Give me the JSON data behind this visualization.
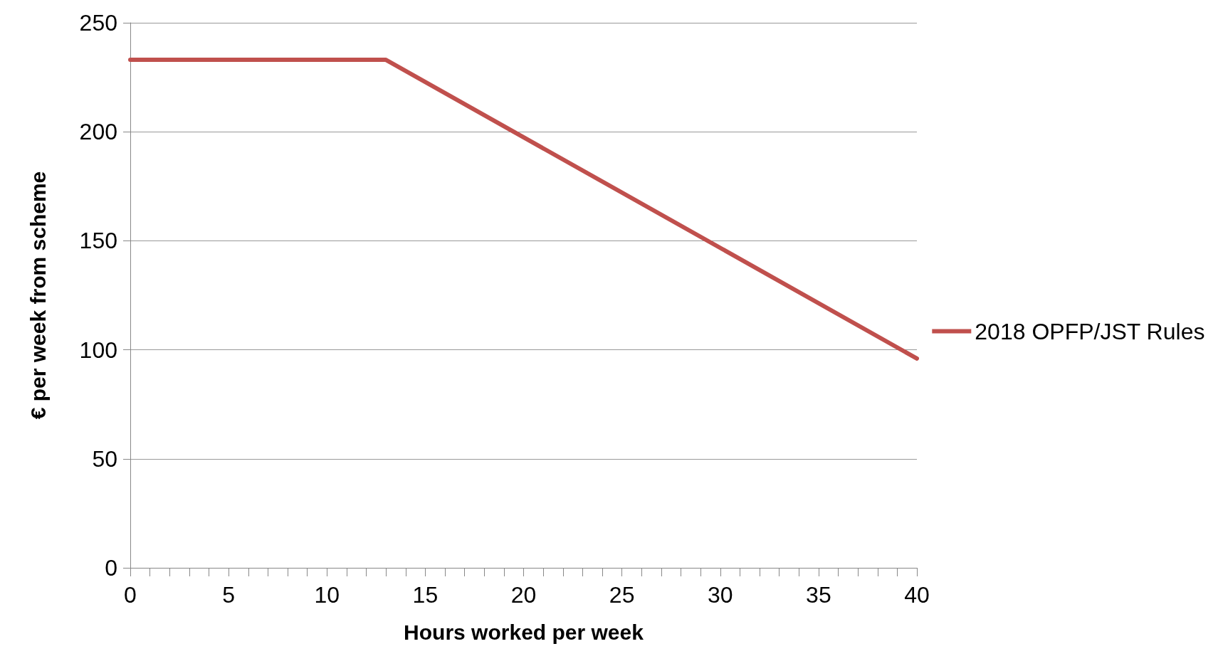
{
  "chart_data": {
    "type": "line",
    "xlabel": "Hours worked per week",
    "ylabel": "€ per week from scheme",
    "series": [
      {
        "name": "2018 OPFP/JST Rules",
        "color": "#c0504d",
        "x": [
          0,
          13,
          40
        ],
        "values": [
          233,
          233,
          96
        ]
      }
    ],
    "xlim": [
      0,
      40
    ],
    "xticks": [
      0,
      {
        "value": 1,
        "label": null
      },
      {
        "value": 2,
        "label": null
      },
      {
        "value": 3,
        "label": null
      },
      {
        "value": 4,
        "label": null
      },
      5,
      {
        "value": 6,
        "label": null
      },
      {
        "value": 7,
        "label": null
      },
      {
        "value": 8,
        "label": null
      },
      {
        "value": 9,
        "label": null
      },
      10,
      {
        "value": 11,
        "label": null
      },
      {
        "value": 12,
        "label": null
      },
      {
        "value": 13,
        "label": null
      },
      {
        "value": 14,
        "label": null
      },
      15,
      {
        "value": 16,
        "label": null
      },
      {
        "value": 17,
        "label": null
      },
      {
        "value": 18,
        "label": null
      },
      {
        "value": 19,
        "label": null
      },
      20,
      {
        "value": 21,
        "label": null
      },
      {
        "value": 22,
        "label": null
      },
      {
        "value": 23,
        "label": null
      },
      {
        "value": 24,
        "label": null
      },
      25,
      {
        "value": 26,
        "label": null
      },
      {
        "value": 27,
        "label": null
      },
      {
        "value": 28,
        "label": null
      },
      {
        "value": 29,
        "label": null
      },
      30,
      {
        "value": 31,
        "label": null
      },
      {
        "value": 32,
        "label": null
      },
      {
        "value": 33,
        "label": null
      },
      {
        "value": 34,
        "label": null
      },
      35,
      {
        "value": 36,
        "label": null
      },
      {
        "value": 37,
        "label": null
      },
      {
        "value": 38,
        "label": null
      },
      {
        "value": 39,
        "label": null
      },
      40
    ],
    "ylim": [
      0,
      250
    ],
    "yticks": [
      0,
      50,
      100,
      150,
      200,
      250
    ],
    "grid": "y",
    "legend": "right",
    "marker": "none",
    "line_style": "solid"
  }
}
